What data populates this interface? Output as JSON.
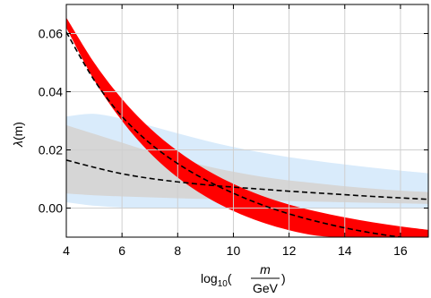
{
  "chart_data": {
    "type": "area",
    "xlim": [
      4,
      17
    ],
    "ylim": [
      -0.01,
      0.07
    ],
    "grid": true,
    "legend": "none",
    "x_ticks": [
      4,
      6,
      8,
      10,
      12,
      14,
      16
    ],
    "x_tick_labels": [
      "4",
      "6",
      "8",
      "10",
      "12",
      "14",
      "16"
    ],
    "y_ticks": [
      0.0,
      0.02,
      0.04,
      0.06
    ],
    "y_tick_labels": [
      "0.00",
      "0.02",
      "0.04",
      "0.06"
    ],
    "ylabel": {
      "symbol": "λ",
      "arg": "(m)"
    },
    "xlabel": {
      "prefix": "log",
      "sub": "10",
      "num": "m",
      "den": "GeV"
    },
    "x": [
      4,
      5,
      6,
      7,
      8,
      9,
      10,
      11,
      12,
      13,
      14,
      15,
      16,
      17
    ],
    "series": [
      {
        "kind": "band",
        "color": "#d9ebfb",
        "upper": [
          0.0315,
          0.0324,
          0.0307,
          0.0283,
          0.0257,
          0.0232,
          0.021,
          0.0191,
          0.0175,
          0.0162,
          0.015,
          0.0139,
          0.0129,
          0.012
        ],
        "lower": [
          0.002,
          0.0008,
          0.0002,
          0.0,
          -0.0001,
          -0.0002,
          -0.0002,
          -0.0002,
          -0.0002,
          -0.0002,
          -0.0002,
          -0.0002,
          -0.0002,
          -0.0002
        ]
      },
      {
        "kind": "band",
        "color": "#d6d6d6",
        "upper": [
          0.0285,
          0.0255,
          0.0225,
          0.0195,
          0.017,
          0.0145,
          0.0125,
          0.0108,
          0.0095,
          0.0085,
          0.0075,
          0.0067,
          0.006,
          0.0055
        ],
        "lower": [
          0.005,
          0.0044,
          0.004,
          0.0037,
          0.0034,
          0.0031,
          0.0028,
          0.0026,
          0.0024,
          0.0022,
          0.002,
          0.0018,
          0.0016,
          0.0014
        ]
      },
      {
        "kind": "band",
        "color": "#ff0000",
        "upper": [
          0.0655,
          0.05,
          0.0375,
          0.0275,
          0.0196,
          0.0133,
          0.0083,
          0.0043,
          0.0012,
          -0.0012,
          -0.0032,
          -0.0049,
          -0.0063,
          -0.0075
        ],
        "lower": [
          0.062,
          0.044,
          0.03,
          0.019,
          0.0105,
          0.004,
          -0.001,
          -0.0048,
          -0.0076,
          -0.0095,
          -0.01,
          -0.01,
          -0.01,
          -0.01
        ]
      },
      {
        "kind": "dashed",
        "color": "#000000",
        "values": [
          0.0605,
          0.044,
          0.0315,
          0.0223,
          0.0153,
          0.0097,
          0.0051,
          0.0012,
          -0.002,
          -0.0046,
          -0.0068,
          -0.0086,
          -0.01,
          -0.011
        ]
      },
      {
        "kind": "dashed",
        "color": "#000000",
        "values": [
          0.0165,
          0.014,
          0.0118,
          0.0102,
          0.009,
          0.008,
          0.0072,
          0.0065,
          0.0058,
          0.0052,
          0.0046,
          0.004,
          0.0035,
          0.003
        ]
      }
    ]
  }
}
